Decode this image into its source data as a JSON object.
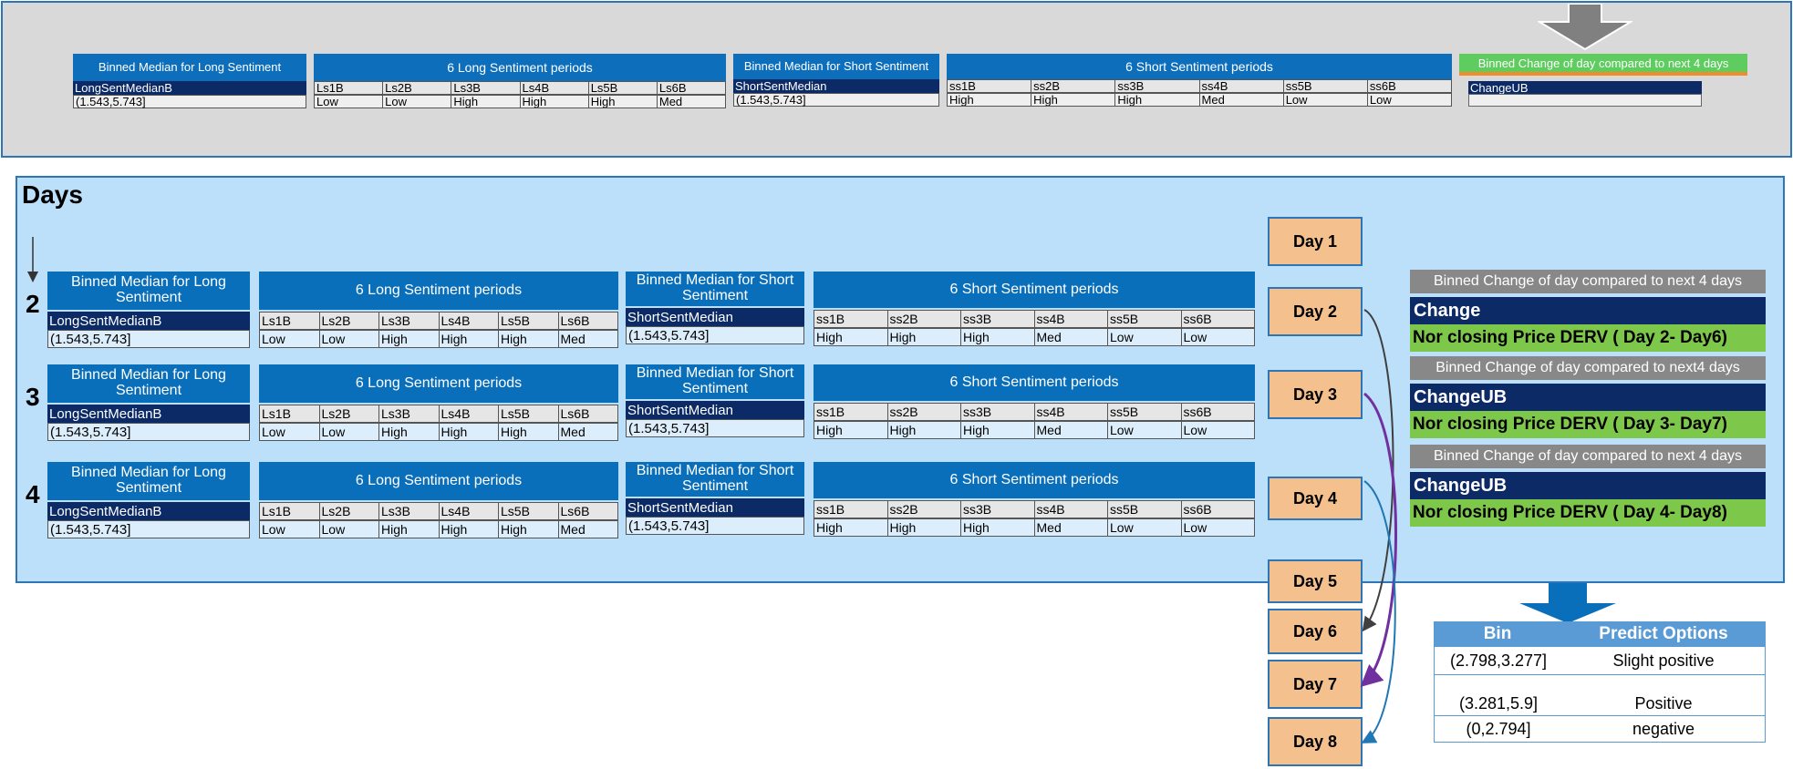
{
  "headers": {
    "binned_long": "Binned Median for Long Sentiment",
    "long_periods": "6 Long Sentiment periods",
    "binned_short": "Binned Median for Short Sentiment",
    "short_periods": "6 Short Sentiment periods",
    "binned_change_top": "Binned Change of day compared to next 4 days"
  },
  "long_median_label": "LongSentMedianB",
  "short_median_label": "ShortSentMedian",
  "median_value": "(1.543,5.743]",
  "top_short_median_value": "(1.543,5.743]",
  "long_cols": [
    "Ls1B",
    "Ls2B",
    "Ls3B",
    "Ls4B",
    "Ls5B",
    "Ls6B"
  ],
  "long_vals": [
    "Low",
    "Low",
    "High",
    "High",
    "High",
    "Med"
  ],
  "short_cols": [
    "ss1B",
    "ss2B",
    "ss3B",
    "ss4B",
    "ss5B",
    "ss6B"
  ],
  "short_vals": [
    "High",
    "High",
    "High",
    "Med",
    "Low",
    "Low"
  ],
  "top_change_label": "ChangeUB",
  "days_title": "Days",
  "row_numbers": [
    "2",
    "3",
    "4"
  ],
  "days": [
    "Day 1",
    "Day 2",
    "Day 3",
    "Day 4",
    "Day 5",
    "Day 6",
    "Day 7",
    "Day 8"
  ],
  "right_panels": [
    {
      "header": "Binned Change of day compared to next 4 days",
      "label": "Change",
      "desc": "Nor closing Price DERV ( Day 2- Day6)"
    },
    {
      "header": "Binned Change of day compared to next4 days",
      "label": "ChangeUB",
      "desc": "Nor closing Price DERV ( Day 3- Day7)"
    },
    {
      "header": "Binned Change of day compared to next 4 days",
      "label": "ChangeUB",
      "desc": "Nor closing Price DERV ( Day 4- Day8)"
    }
  ],
  "bin_table": {
    "col_bin": "Bin",
    "col_predict": "Predict Options",
    "rows": [
      {
        "bin": "(2.798,3.277]",
        "predict": "Slight positive"
      },
      {
        "bin": "(3.281,5.9]",
        "predict": "Positive"
      },
      {
        "bin": "(0,2.794]",
        "predict": "negative"
      }
    ]
  },
  "colors": {
    "blue_header": "#0a6fba",
    "navy": "#0b2a66",
    "green": "#7dc84a",
    "day_fill": "#f4c18e",
    "arrow_dark": "#404040",
    "arrow_purple": "#7030a0",
    "arrow_blue": "#1f77b4"
  }
}
